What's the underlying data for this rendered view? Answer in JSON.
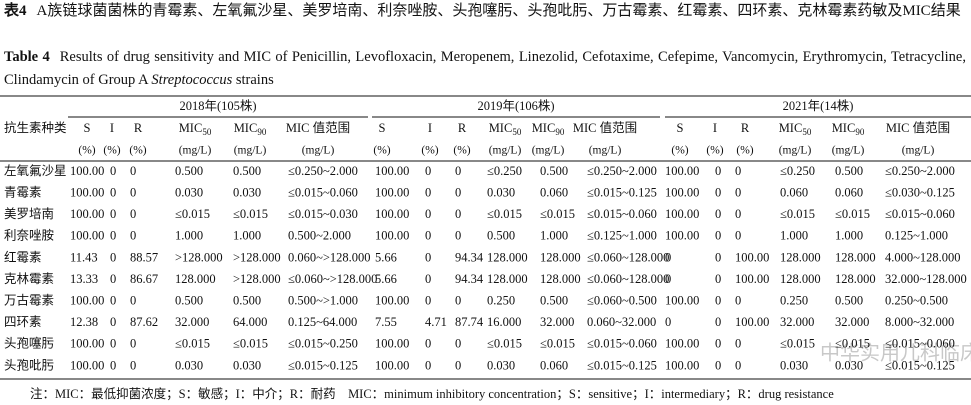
{
  "title_cn": {
    "label": "表4",
    "text": "A族链球菌菌株的青霉素、左氧氟沙星、美罗培南、利奈唑胺、头孢噻肟、头孢吡肟、万古霉素、红霉素、四环素、克林霉素药敏及MIC结果"
  },
  "title_en": {
    "label": "Table 4",
    "text_before": "Results of drug sensitivity and MIC of Penicillin, Levofloxacin, Meropenem, Linezolid, Cefotaxime, Cefepime, Vancomycin, Erythromycin, Tetracycline, Clindamycin of Group A ",
    "italic": "Streptococcus",
    "text_after": " strains"
  },
  "table": {
    "row_header": "抗生素种类",
    "groups": [
      "2018年(105株)",
      "2019年(106株)",
      "2021年(14株)"
    ],
    "columns": [
      {
        "name": "S",
        "unit": "(%)"
      },
      {
        "name": "I",
        "unit": "(%)"
      },
      {
        "name": "R",
        "unit": "(%)"
      },
      {
        "name": "MIC",
        "sub": "50",
        "unit": "(mg/L)"
      },
      {
        "name": "MIC",
        "sub": "90",
        "unit": "(mg/L)"
      },
      {
        "name": "MIC 值范围",
        "unit": "(mg/L)"
      }
    ],
    "rows": [
      {
        "name": "左氧氟沙星",
        "values": [
          [
            "100.00",
            "0",
            "0",
            "0.500",
            "0.500",
            "≤0.250~2.000"
          ],
          [
            "100.00",
            "0",
            "0",
            "≤0.250",
            "0.500",
            "≤0.250~2.000"
          ],
          [
            "100.00",
            "0",
            "0",
            "≤0.250",
            "0.500",
            "≤0.250~2.000"
          ]
        ]
      },
      {
        "name": "青霉素",
        "values": [
          [
            "100.00",
            "0",
            "0",
            "0.030",
            "0.030",
            "≤0.015~0.060"
          ],
          [
            "100.00",
            "0",
            "0",
            "0.030",
            "0.060",
            "≤0.015~0.125"
          ],
          [
            "100.00",
            "0",
            "0",
            "0.060",
            "0.060",
            "≤0.030~0.125"
          ]
        ]
      },
      {
        "name": "美罗培南",
        "values": [
          [
            "100.00",
            "0",
            "0",
            "≤0.015",
            "≤0.015",
            "≤0.015~0.030"
          ],
          [
            "100.00",
            "0",
            "0",
            "≤0.015",
            "≤0.015",
            "≤0.015~0.060"
          ],
          [
            "100.00",
            "0",
            "0",
            "≤0.015",
            "≤0.015",
            "≤0.015~0.060"
          ]
        ]
      },
      {
        "name": "利奈唑胺",
        "values": [
          [
            "100.00",
            "0",
            "0",
            "1.000",
            "1.000",
            "0.500~2.000"
          ],
          [
            "100.00",
            "0",
            "0",
            "0.500",
            "1.000",
            "≤0.125~1.000"
          ],
          [
            "100.00",
            "0",
            "0",
            "1.000",
            "1.000",
            "0.125~1.000"
          ]
        ]
      },
      {
        "name": "红霉素",
        "values": [
          [
            "11.43",
            "0",
            "88.57",
            ">128.000",
            ">128.000",
            "0.060~>128.000"
          ],
          [
            "5.66",
            "0",
            "94.34",
            "128.000",
            "128.000",
            "≤0.060~128.000"
          ],
          [
            "0",
            "0",
            "100.00",
            "128.000",
            "128.000",
            "4.000~128.000"
          ]
        ]
      },
      {
        "name": "克林霉素",
        "values": [
          [
            "13.33",
            "0",
            "86.67",
            "128.000",
            ">128.000",
            "≤0.060~>128.000"
          ],
          [
            "5.66",
            "0",
            "94.34",
            "128.000",
            "128.000",
            "≤0.060~128.000"
          ],
          [
            "0",
            "0",
            "100.00",
            "128.000",
            "128.000",
            "32.000~128.000"
          ]
        ]
      },
      {
        "name": "万古霉素",
        "values": [
          [
            "100.00",
            "0",
            "0",
            "0.500",
            "0.500",
            "0.500~>1.000"
          ],
          [
            "100.00",
            "0",
            "0",
            "0.250",
            "0.500",
            "≤0.060~0.500"
          ],
          [
            "100.00",
            "0",
            "0",
            "0.250",
            "0.500",
            "0.250~0.500"
          ]
        ]
      },
      {
        "name": "四环素",
        "values": [
          [
            "12.38",
            "0",
            "87.62",
            "32.000",
            "64.000",
            "0.125~64.000"
          ],
          [
            "7.55",
            "4.71",
            "87.74",
            "16.000",
            "32.000",
            "0.060~32.000"
          ],
          [
            "0",
            "0",
            "100.00",
            "32.000",
            "32.000",
            "8.000~32.000"
          ]
        ]
      },
      {
        "name": "头孢噻肟",
        "values": [
          [
            "100.00",
            "0",
            "0",
            "≤0.015",
            "≤0.015",
            "≤0.015~0.250"
          ],
          [
            "100.00",
            "0",
            "0",
            "≤0.015",
            "≤0.015",
            "≤0.015~0.060"
          ],
          [
            "100.00",
            "0",
            "0",
            "≤0.015",
            "≤0.015",
            "≤0.015~0.060"
          ]
        ]
      },
      {
        "name": "头孢吡肟",
        "values": [
          [
            "100.00",
            "0",
            "0",
            "0.030",
            "0.030",
            "≤0.015~0.125"
          ],
          [
            "100.00",
            "0",
            "0",
            "0.030",
            "0.060",
            "≤0.015~0.125"
          ],
          [
            "100.00",
            "0",
            "0",
            "0.030",
            "0.030",
            "≤0.015~0.125"
          ]
        ]
      }
    ]
  },
  "note": "注：MIC：最低抑菌浓度；S：敏感；I：中介；R：耐药　MIC：minimum inhibitory concentration；S：sensitive；I：intermediary；R：drug resistance",
  "watermark": "中华实用儿科临床杂志"
}
